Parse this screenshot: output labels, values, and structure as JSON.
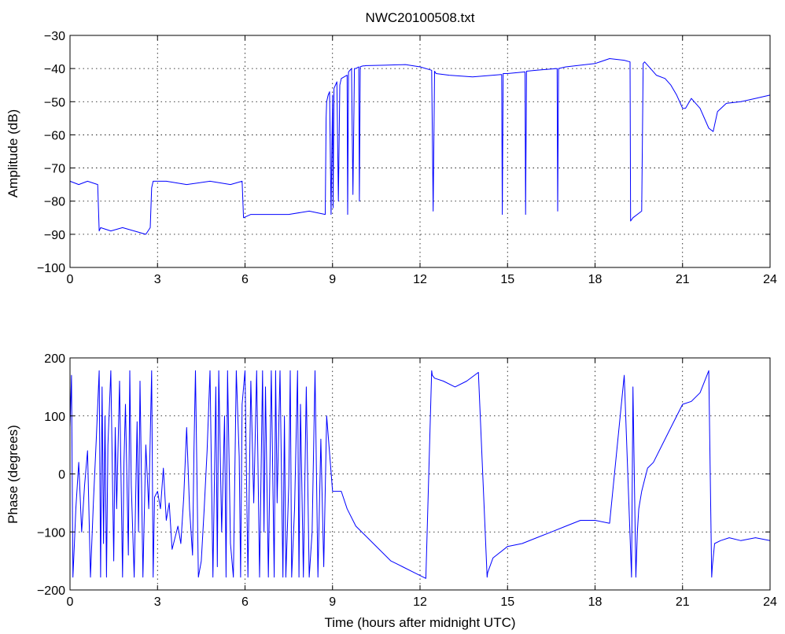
{
  "figure": {
    "title": "NWC20100508.txt",
    "line_color": "#0000ff"
  },
  "chart_data": [
    {
      "type": "line",
      "name": "amplitude",
      "title": "NWC20100508.txt",
      "xlabel": "",
      "ylabel": "Amplitude (dB)",
      "xlim": [
        0,
        24
      ],
      "ylim": [
        -100,
        -30
      ],
      "xticks": [
        0,
        3,
        6,
        9,
        12,
        15,
        18,
        21,
        24
      ],
      "yticks": [
        -100,
        -90,
        -80,
        -70,
        -60,
        -50,
        -40,
        -30
      ],
      "grid": true,
      "x": [
        0.0,
        0.3,
        0.6,
        0.95,
        1.0,
        1.05,
        1.4,
        1.8,
        2.2,
        2.6,
        2.75,
        2.8,
        2.85,
        3.3,
        4.0,
        4.8,
        5.5,
        5.9,
        5.95,
        6.2,
        6.8,
        7.5,
        8.2,
        8.75,
        8.78,
        8.8,
        8.85,
        8.9,
        8.95,
        9.0,
        9.02,
        9.05,
        9.15,
        9.2,
        9.25,
        9.3,
        9.5,
        9.52,
        9.55,
        9.65,
        9.7,
        9.75,
        9.8,
        9.9,
        9.92,
        9.95,
        10.0,
        10.05,
        10.1,
        10.15,
        10.2,
        10.8,
        11.5,
        12.0,
        12.4,
        12.45,
        12.5,
        12.55,
        13.0,
        13.8,
        14.5,
        14.8,
        14.82,
        14.85,
        15.0,
        15.6,
        15.62,
        15.65,
        16.0,
        16.7,
        16.72,
        16.75,
        17.0,
        17.5,
        18.0,
        18.5,
        19.0,
        19.2,
        19.22,
        19.3,
        19.6,
        19.65,
        19.7,
        19.9,
        20.1,
        20.4,
        20.6,
        20.8,
        21.0,
        21.1,
        21.3,
        21.6,
        21.9,
        22.05,
        22.2,
        22.5,
        23.0,
        23.5,
        24.0
      ],
      "y": [
        -74,
        -75,
        -74,
        -75,
        -89,
        -88,
        -89,
        -88,
        -89,
        -90,
        -88,
        -76,
        -74,
        -74,
        -75,
        -74,
        -75,
        -74,
        -85,
        -84,
        -84,
        -84,
        -83,
        -84,
        -55,
        -50,
        -48,
        -47,
        -84,
        -48,
        -82,
        -46,
        -44,
        -80,
        -45,
        -43,
        -42,
        -84,
        -41,
        -40,
        -78,
        -40,
        -40,
        -39.5,
        -80,
        -39.5,
        -39.3,
        -39.2,
        -39.2,
        -39.1,
        -39.1,
        -39,
        -38.8,
        -39.5,
        -40.5,
        -83,
        -40.8,
        -41.5,
        -42,
        -42.5,
        -42,
        -41.8,
        -84,
        -41.5,
        -41.5,
        -41,
        -84,
        -40.8,
        -40.5,
        -40,
        -83,
        -40,
        -39.5,
        -39,
        -38.5,
        -37,
        -37.5,
        -38,
        -86,
        -85,
        -83,
        -38.5,
        -38,
        -40,
        -42,
        -43,
        -45,
        -48,
        -52,
        -52,
        -49,
        -52,
        -58,
        -59,
        -53,
        -50.5,
        -50,
        -49,
        -48
      ]
    },
    {
      "type": "line",
      "name": "phase",
      "title": "",
      "xlabel": "Time (hours after midnight UTC)",
      "ylabel": "Phase (degrees)",
      "xlim": [
        0,
        24
      ],
      "ylim": [
        -200,
        200
      ],
      "xticks": [
        0,
        3,
        6,
        9,
        12,
        15,
        18,
        21,
        24
      ],
      "yticks": [
        -200,
        -100,
        0,
        100,
        200
      ],
      "grid": true,
      "x": [
        0.0,
        0.05,
        0.1,
        0.15,
        0.2,
        0.3,
        0.4,
        0.5,
        0.6,
        0.7,
        0.8,
        0.9,
        1.0,
        1.05,
        1.1,
        1.15,
        1.2,
        1.25,
        1.3,
        1.4,
        1.5,
        1.55,
        1.6,
        1.7,
        1.8,
        1.85,
        1.9,
        2.0,
        2.05,
        2.1,
        2.2,
        2.3,
        2.35,
        2.4,
        2.5,
        2.6,
        2.7,
        2.8,
        2.85,
        2.9,
        3.0,
        3.1,
        3.2,
        3.3,
        3.4,
        3.5,
        3.6,
        3.7,
        3.8,
        3.9,
        4.0,
        4.1,
        4.2,
        4.25,
        4.3,
        4.4,
        4.5,
        4.6,
        4.7,
        4.8,
        4.9,
        5.0,
        5.05,
        5.1,
        5.2,
        5.3,
        5.35,
        5.4,
        5.5,
        5.6,
        5.7,
        5.8,
        5.85,
        5.9,
        6.0,
        6.1,
        6.2,
        6.3,
        6.4,
        6.5,
        6.6,
        6.65,
        6.7,
        6.8,
        6.9,
        7.0,
        7.05,
        7.1,
        7.2,
        7.3,
        7.35,
        7.4,
        7.5,
        7.55,
        7.6,
        7.7,
        7.8,
        7.85,
        7.9,
        8.0,
        8.1,
        8.2,
        8.3,
        8.4,
        8.5,
        8.6,
        8.7,
        8.8,
        9.0,
        9.3,
        9.5,
        9.8,
        10.2,
        10.6,
        11.0,
        11.4,
        11.8,
        12.2,
        12.4,
        12.42,
        12.5,
        12.8,
        13.2,
        13.6,
        14.0,
        14.3,
        14.32,
        14.5,
        15.0,
        15.5,
        16.0,
        16.5,
        17.0,
        17.5,
        18.0,
        18.5,
        19.0,
        19.25,
        19.3,
        19.4,
        19.45,
        19.5,
        19.6,
        19.7,
        19.8,
        20.0,
        20.3,
        20.6,
        21.0,
        21.3,
        21.6,
        21.9,
        22.0,
        22.02,
        22.1,
        22.3,
        22.6,
        23.0,
        23.5,
        24.0
      ],
      "y": [
        80,
        170,
        -178,
        -120,
        -60,
        20,
        -100,
        -20,
        40,
        -178,
        -50,
        60,
        178,
        -178,
        150,
        -120,
        100,
        -178,
        50,
        178,
        -150,
        80,
        -60,
        160,
        -178,
        20,
        120,
        -140,
        178,
        -20,
        -178,
        90,
        -100,
        160,
        -178,
        50,
        -60,
        178,
        -178,
        -40,
        -30,
        -60,
        10,
        -80,
        -50,
        -130,
        -110,
        -90,
        -120,
        -40,
        80,
        -60,
        -140,
        40,
        178,
        -178,
        -150,
        -60,
        40,
        178,
        -178,
        150,
        -160,
        178,
        -100,
        100,
        -178,
        178,
        -120,
        -178,
        178,
        30,
        -178,
        120,
        178,
        -178,
        160,
        -50,
        178,
        -178,
        178,
        -100,
        150,
        -178,
        178,
        -178,
        178,
        -50,
        178,
        -178,
        100,
        -178,
        -20,
        178,
        -178,
        -60,
        178,
        -178,
        120,
        -178,
        150,
        -178,
        -100,
        178,
        -178,
        60,
        -160,
        100,
        -30,
        -30,
        -60,
        -90,
        -110,
        -130,
        -150,
        -160,
        -170,
        -180,
        178,
        170,
        165,
        160,
        150,
        160,
        175,
        -178,
        -170,
        -145,
        -125,
        -120,
        -110,
        -100,
        -90,
        -80,
        -80,
        -85,
        170,
        -178,
        150,
        -178,
        -100,
        -60,
        -30,
        -10,
        10,
        20,
        50,
        80,
        120,
        125,
        140,
        178,
        -178,
        -160,
        -120,
        -115,
        -110,
        -115,
        -110,
        -115
      ]
    }
  ]
}
